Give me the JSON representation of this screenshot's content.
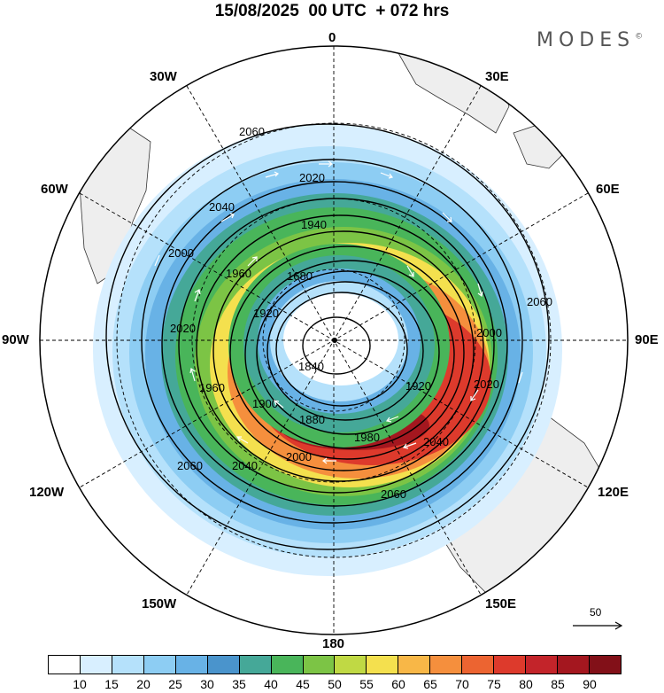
{
  "title": "15/08/2025  00 UTC  + 072 hrs",
  "brand": "MODES",
  "brand_mark": "©",
  "longitude_labels": {
    "top": "0",
    "bottom": "180",
    "left": "90W",
    "right": "90E",
    "nw": "30W",
    "ne": "30E",
    "wnw": "60W",
    "ene": "60E",
    "wsw": "120W",
    "ese": "120E",
    "sw": "150W",
    "se": "150E"
  },
  "contour_labels": [
    "2060",
    "2040",
    "2020",
    "1940",
    "1960",
    "1680",
    "1920",
    "1840",
    "1880",
    "1900",
    "1980",
    "2000",
    "2060",
    "2040",
    "2020",
    "2000",
    "1960",
    "1920",
    "2060",
    "2060",
    "2040",
    "2020",
    "2000"
  ],
  "reference_vector": {
    "value": "50"
  },
  "colorbar": {
    "labels": [
      "10",
      "15",
      "20",
      "25",
      "30",
      "35",
      "40",
      "45",
      "50",
      "55",
      "60",
      "65",
      "70",
      "75",
      "80",
      "85",
      "90"
    ],
    "colors": [
      "#ffffff",
      "#d8efff",
      "#b5e1fb",
      "#8dcdf3",
      "#68b2e6",
      "#4a94cc",
      "#45a898",
      "#49b55a",
      "#7cc445",
      "#c0d944",
      "#f4e04e",
      "#f8b747",
      "#f58f3d",
      "#ec6431",
      "#dd3a2c",
      "#c3242a",
      "#a4171f",
      "#821018"
    ]
  }
}
